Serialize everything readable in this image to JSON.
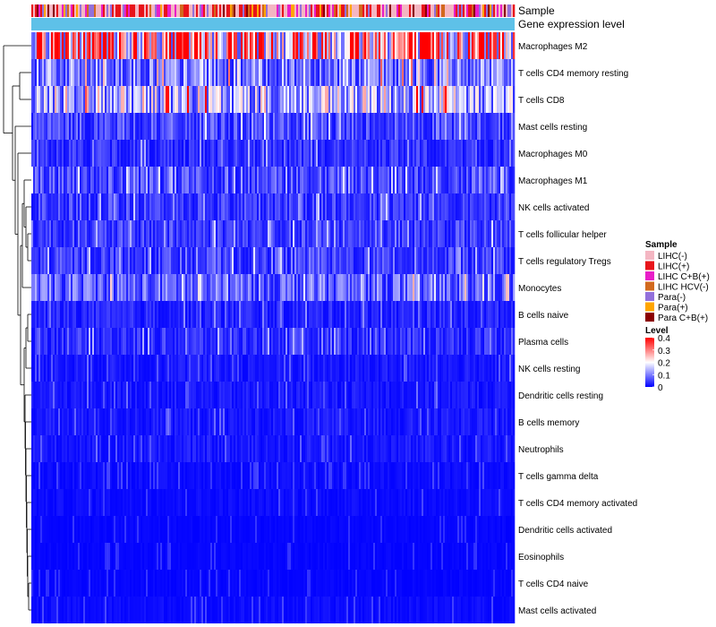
{
  "chart_data": {
    "type": "heatmap",
    "title": "",
    "annotation_labels": [
      "Sample",
      "Gene expression level"
    ],
    "rows": [
      {
        "label": "Macrophages M2",
        "mean": 0.3
      },
      {
        "label": "T cells CD4 memory resting",
        "mean": 0.1
      },
      {
        "label": "T cells CD8",
        "mean": 0.15
      },
      {
        "label": "Mast cells resting",
        "mean": 0.06
      },
      {
        "label": "Macrophages M0",
        "mean": 0.04
      },
      {
        "label": "Macrophages M1",
        "mean": 0.06
      },
      {
        "label": "NK cells activated",
        "mean": 0.05
      },
      {
        "label": "T cells follicular helper",
        "mean": 0.05
      },
      {
        "label": "T cells regulatory  Tregs",
        "mean": 0.05
      },
      {
        "label": "Monocytes",
        "mean": 0.08
      },
      {
        "label": "B cells naive",
        "mean": 0.03
      },
      {
        "label": "Plasma cells",
        "mean": 0.04
      },
      {
        "label": "NK cells resting",
        "mean": 0.02
      },
      {
        "label": "Dendritic cells resting",
        "mean": 0.02
      },
      {
        "label": "B cells memory",
        "mean": 0.02
      },
      {
        "label": "Neutrophils",
        "mean": 0.02
      },
      {
        "label": "T cells gamma delta",
        "mean": 0.01
      },
      {
        "label": "T cells CD4 memory activated",
        "mean": 0.01
      },
      {
        "label": "Dendritic cells activated",
        "mean": 0.005
      },
      {
        "label": "Eosinophils",
        "mean": 0.005
      },
      {
        "label": "T cells CD4 naive",
        "mean": 0.005
      },
      {
        "label": "Mast cells activated",
        "mean": 0.01
      }
    ],
    "n_samples": 270,
    "sample_groups": [
      {
        "name": "LIHC(-)",
        "color": "#f4b6c2"
      },
      {
        "name": "LIHC(+)",
        "color": "#e8141a"
      },
      {
        "name": "LIHC C+B(+)",
        "color": "#e81ec8"
      },
      {
        "name": "LIHC HCV(-)",
        "color": "#d2691e"
      },
      {
        "name": "Para(-)",
        "color": "#9370db"
      },
      {
        "name": "Para(+)",
        "color": "#ffa500"
      },
      {
        "name": "Para C+B(+)",
        "color": "#8b0000"
      }
    ],
    "gene_expression_color": "#5ec1e8",
    "color_scale": {
      "title": "Level",
      "min": 0,
      "max": 0.4,
      "ticks": [
        "0.4",
        "0.3",
        "0.2",
        "0.1",
        "0"
      ],
      "colors": [
        "#0000ff",
        "#ffffff",
        "#ff0000"
      ]
    },
    "legend_position": "right",
    "row_dendrogram": true
  }
}
